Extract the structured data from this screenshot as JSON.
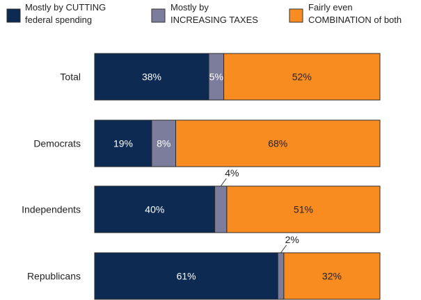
{
  "chart_data": {
    "type": "bar",
    "orientation": "horizontal",
    "stacked": true,
    "categories": [
      "Total",
      "Democrats",
      "Independents",
      "Republicans"
    ],
    "series": [
      {
        "name_lines": [
          "Mostly by CUTTING",
          "federal spending"
        ],
        "color": "#0d2a52",
        "label_color": "#ffffff",
        "values": [
          38,
          19,
          40,
          61
        ],
        "labels": [
          "38%",
          "19%",
          "40%",
          "61%"
        ]
      },
      {
        "name_lines": [
          "Mostly by",
          "INCREASING TAXES"
        ],
        "color": "#7c7d9c",
        "label_color": "#ffffff",
        "values": [
          5,
          8,
          4,
          2
        ],
        "labels": [
          "5%",
          "8%",
          "4%",
          "2%"
        ],
        "outside_label": [
          false,
          false,
          true,
          true
        ]
      },
      {
        "name_lines": [
          "Fairly even",
          "COMBINATION of both"
        ],
        "color": "#f98c21",
        "label_color": "#222222",
        "values": [
          52,
          68,
          51,
          32
        ],
        "labels": [
          "52%",
          "68%",
          "51%",
          "32%"
        ]
      }
    ],
    "legend": "top",
    "grid": false
  }
}
